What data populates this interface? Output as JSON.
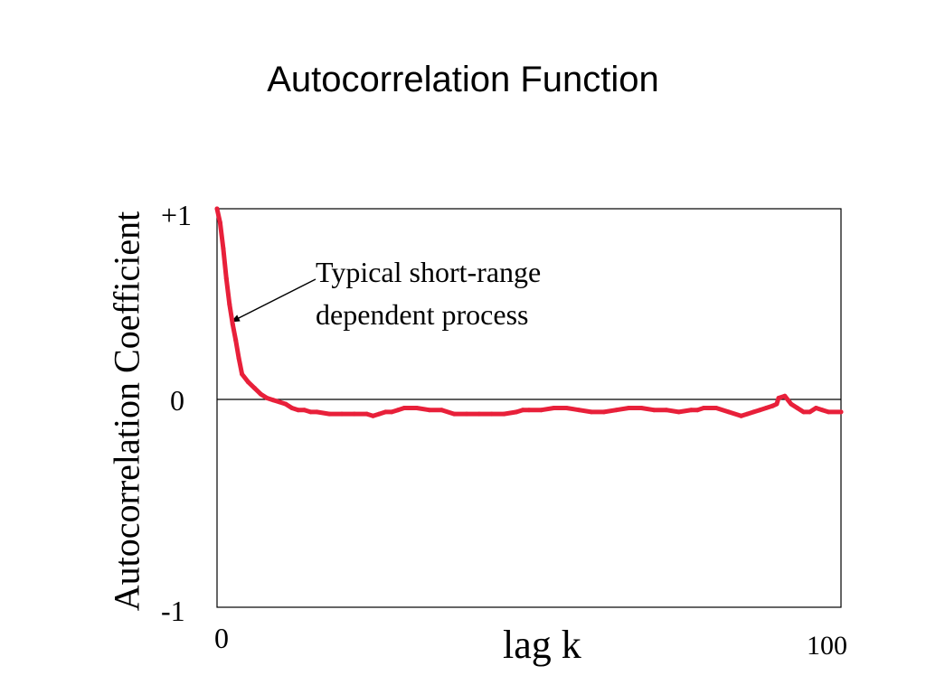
{
  "chart_data": {
    "type": "line",
    "title": "Autocorrelation Function",
    "xlabel": "lag k",
    "ylabel": "Autocorrelation Coefficient",
    "xlim": [
      0,
      100
    ],
    "ylim": [
      -1,
      1
    ],
    "x_tick_labels": [
      "0",
      "100"
    ],
    "y_tick_labels": [
      "+1",
      "0",
      "-1"
    ],
    "grid": false,
    "line_color": "#e8203a",
    "annotation": {
      "line1": "Typical short-range",
      "line2": "dependent process",
      "points_to": [
        2.6,
        0.4
      ]
    },
    "series": [
      {
        "x": [
          0,
          0.5,
          1,
          1.5,
          2,
          2.5,
          3,
          3.5,
          4,
          5,
          6,
          7,
          8,
          9,
          10,
          11,
          12,
          13,
          14,
          15,
          16,
          18,
          20,
          22,
          24,
          25,
          26,
          27,
          28,
          29,
          30,
          32,
          34,
          36,
          38,
          40,
          42,
          44,
          46,
          48,
          49,
          50,
          52,
          54,
          56,
          58,
          60,
          62,
          64,
          66,
          68,
          70,
          72,
          74,
          76,
          77,
          78,
          80,
          82,
          84,
          85,
          86,
          87,
          88,
          89,
          89.7,
          90,
          91,
          92,
          93,
          94,
          95,
          96,
          97,
          98,
          100
        ],
        "y": [
          1.0,
          0.93,
          0.8,
          0.65,
          0.52,
          0.42,
          0.34,
          0.25,
          0.17,
          0.13,
          0.1,
          0.07,
          0.05,
          0.04,
          0.03,
          0.02,
          0.0,
          -0.01,
          -0.01,
          -0.02,
          -0.02,
          -0.03,
          -0.03,
          -0.03,
          -0.03,
          -0.04,
          -0.03,
          -0.02,
          -0.02,
          -0.01,
          0.0,
          0.0,
          -0.01,
          -0.01,
          -0.03,
          -0.03,
          -0.03,
          -0.03,
          -0.03,
          -0.02,
          -0.01,
          -0.01,
          -0.01,
          0.0,
          0.0,
          -0.01,
          -0.02,
          -0.02,
          -0.01,
          0.0,
          0.0,
          -0.01,
          -0.01,
          -0.02,
          -0.01,
          -0.01,
          0.0,
          0.0,
          -0.02,
          -0.04,
          -0.03,
          -0.02,
          -0.01,
          0.0,
          0.01,
          0.02,
          0.05,
          0.06,
          0.02,
          0.0,
          -0.02,
          -0.02,
          0.0,
          -0.01,
          -0.02,
          -0.02
        ]
      }
    ]
  }
}
